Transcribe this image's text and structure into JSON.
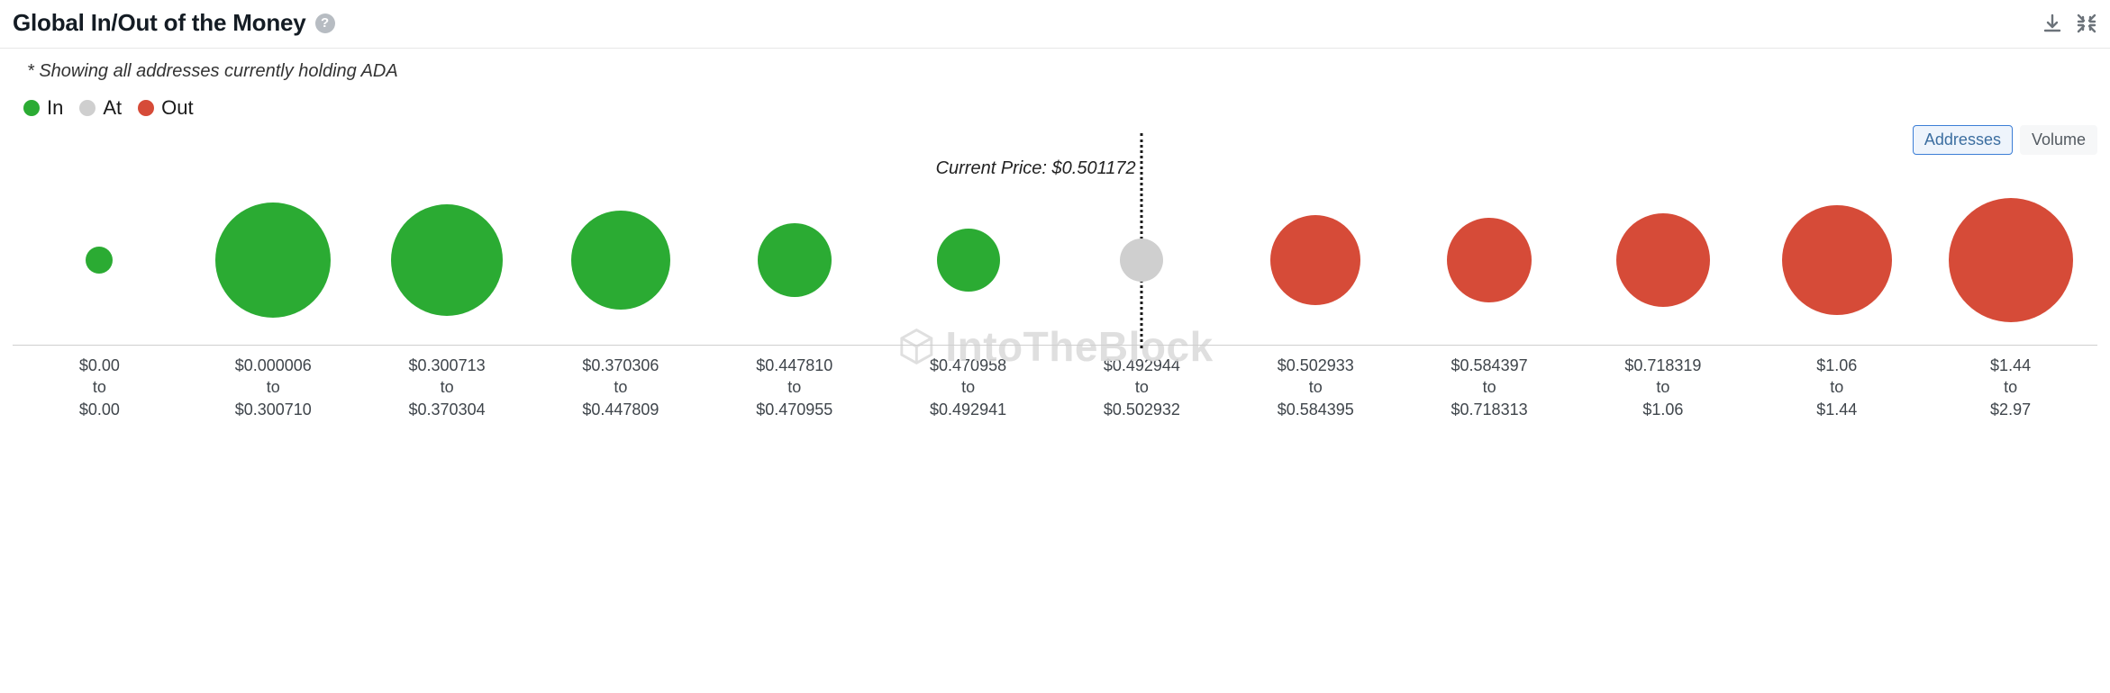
{
  "header": {
    "title": "Global In/Out of the Money",
    "help_tooltip": "?"
  },
  "subtitle": "* Showing all addresses currently holding ADA",
  "legend": {
    "items": [
      {
        "label": "In",
        "color": "#2bab33"
      },
      {
        "label": "At",
        "color": "#cfcfcf"
      },
      {
        "label": "Out",
        "color": "#d64b38"
      }
    ]
  },
  "toggle": {
    "options": [
      "Addresses",
      "Volume"
    ],
    "active": "Addresses"
  },
  "watermark": "IntoTheBlock",
  "chart": {
    "type": "bubble-row",
    "background_color": "#ffffff",
    "axis_color": "#cfcfcf",
    "current_price": {
      "label": "Current Price:",
      "value": "$0.501172",
      "boundary_after_index": 6
    },
    "label_fontsize": 18,
    "bubble_row_height": 190,
    "colors": {
      "in": "#2bab33",
      "at": "#cfcfcf",
      "out": "#d64b38"
    },
    "buckets": [
      {
        "from": "$0.00",
        "to": "$0.00",
        "category": "in",
        "diameter": 30
      },
      {
        "from": "$0.000006",
        "to": "$0.300710",
        "category": "in",
        "diameter": 128
      },
      {
        "from": "$0.300713",
        "to": "$0.370304",
        "category": "in",
        "diameter": 124
      },
      {
        "from": "$0.370306",
        "to": "$0.447809",
        "category": "in",
        "diameter": 110
      },
      {
        "from": "$0.447810",
        "to": "$0.470955",
        "category": "in",
        "diameter": 82
      },
      {
        "from": "$0.470958",
        "to": "$0.492941",
        "category": "in",
        "diameter": 70
      },
      {
        "from": "$0.492944",
        "to": "$0.502932",
        "category": "at",
        "diameter": 48
      },
      {
        "from": "$0.502933",
        "to": "$0.584395",
        "category": "out",
        "diameter": 100
      },
      {
        "from": "$0.584397",
        "to": "$0.718313",
        "category": "out",
        "diameter": 94
      },
      {
        "from": "$0.718319",
        "to": "$1.06",
        "category": "out",
        "diameter": 104
      },
      {
        "from": "$1.06",
        "to": "$1.44",
        "category": "out",
        "diameter": 122
      },
      {
        "from": "$1.44",
        "to": "$2.97",
        "category": "out",
        "diameter": 138
      }
    ]
  }
}
